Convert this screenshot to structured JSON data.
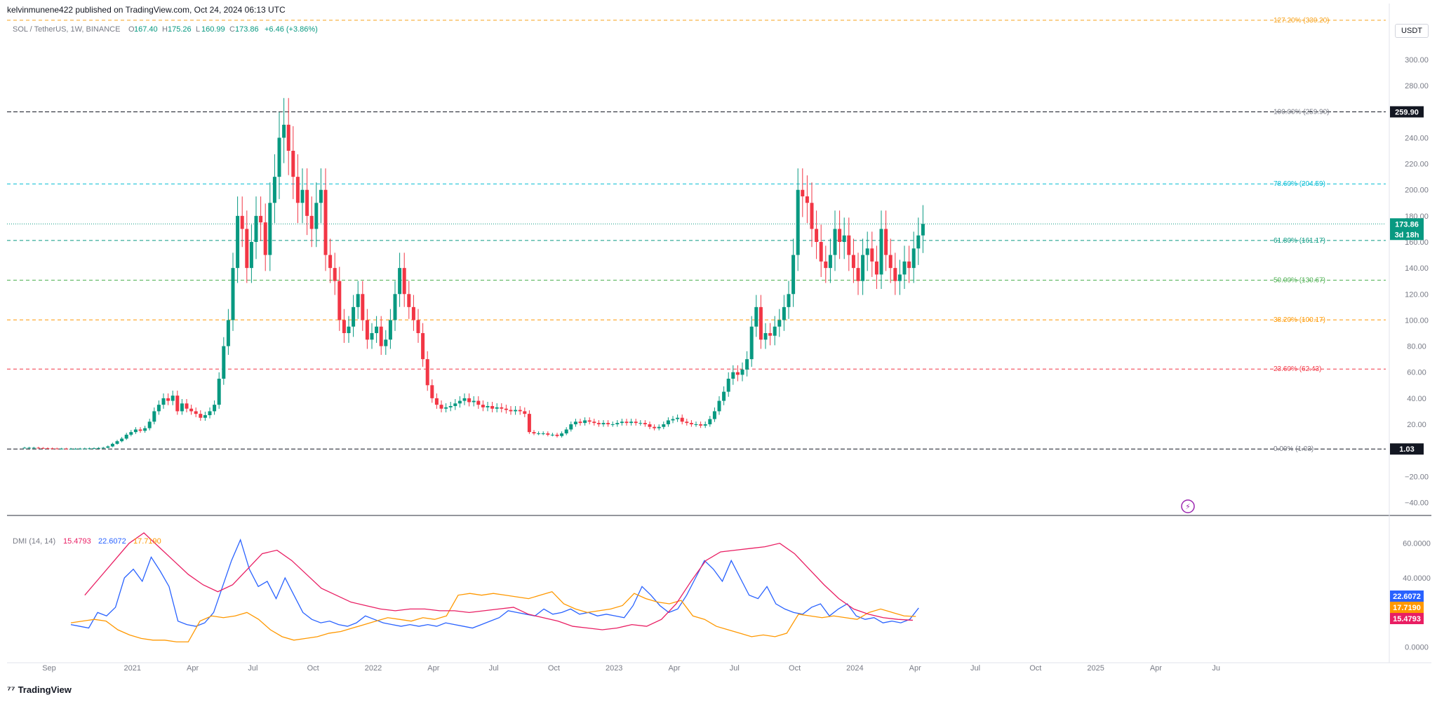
{
  "header": {
    "published": "kelvinmunene422 published on TradingView.com, Oct 24, 2024 06:13 UTC",
    "symbol": "SOL / TetherUS, 1W, BINANCE",
    "o_label": "O",
    "o": "167.40",
    "h_label": "H",
    "h": "175.26",
    "l_label": "L",
    "l": "160.99",
    "c_label": "C",
    "c": "173.86",
    "change": "+6.46 (+3.86%)"
  },
  "currency_badge": "USDT",
  "footer": {
    "brand": "TradingView"
  },
  "colors": {
    "up": "#089981",
    "down": "#f23645",
    "adx": "#2962ff",
    "di_plus": "#ff9800",
    "di_minus": "#e91e63"
  },
  "chart_data": [
    {
      "type": "candlestick",
      "ylim": [
        -50,
        335
      ],
      "y_ticks": [
        "300.00",
        "280.00",
        "240.00",
        "220.00",
        "200.00",
        "180.00",
        "160.00",
        "140.00",
        "120.00",
        "100.00",
        "80.00",
        "60.00",
        "40.00",
        "20.00",
        "−20.00",
        "−40.00"
      ],
      "y_tick_values": [
        300,
        280,
        240,
        220,
        200,
        180,
        160,
        140,
        120,
        100,
        80,
        60,
        40,
        20,
        -20,
        -40
      ],
      "x_ticks": [
        "Sep",
        "2021",
        "Apr",
        "Jul",
        "Oct",
        "2022",
        "Apr",
        "Jul",
        "Oct",
        "2023",
        "Apr",
        "Jul",
        "Oct",
        "2024",
        "Apr",
        "Jul",
        "Oct",
        "2025",
        "Apr",
        "Ju"
      ],
      "x_tick_weeks": [
        0,
        18,
        31,
        44,
        57,
        70,
        83,
        96,
        109,
        122,
        135,
        148,
        161,
        174,
        187,
        200,
        213,
        226,
        239,
        252
      ],
      "price_labels": [
        {
          "text": "259.90",
          "value": 259.9,
          "style": "black"
        },
        {
          "text": "173.86",
          "value": 173.86,
          "style": "green"
        },
        {
          "text": "3d 18h",
          "value": 173.86,
          "style": "green-sub"
        },
        {
          "text": "1.03",
          "value": 1.03,
          "style": "black"
        }
      ],
      "fib_levels": [
        {
          "label": "127.20% (330.20)",
          "value": 330.2,
          "color": "#f7a21b"
        },
        {
          "label": "100.00% (259.90)",
          "value": 259.9,
          "color": "#787b86"
        },
        {
          "label": "78.60% (204.59)",
          "value": 204.59,
          "color": "#00bcd4"
        },
        {
          "label": "61.80% (161.17)",
          "value": 161.17,
          "color": "#089981"
        },
        {
          "label": "50.00% (130.67)",
          "value": 130.67,
          "color": "#4caf50"
        },
        {
          "label": "38.20% (100.17)",
          "value": 100.17,
          "color": "#ff9800"
        },
        {
          "label": "23.60% (62.43)",
          "value": 62.43,
          "color": "#f23645"
        },
        {
          "label": "0.00% (1.03)",
          "value": 1.03,
          "color": "#787b86"
        }
      ],
      "close_series": [
        2,
        2,
        2,
        1.8,
        1.6,
        1.5,
        1.4,
        1.3,
        1.3,
        1.2,
        1.2,
        1.2,
        1.3,
        1.4,
        1.5,
        1.6,
        1.8,
        2.0,
        3,
        5,
        7,
        9,
        12,
        14,
        16,
        15,
        17,
        22,
        30,
        35,
        40,
        38,
        42,
        30,
        36,
        32,
        30,
        28,
        25,
        27,
        30,
        35,
        55,
        80,
        100,
        140,
        180,
        170,
        140,
        160,
        180,
        175,
        150,
        190,
        210,
        240,
        250,
        230,
        210,
        190,
        200,
        180,
        170,
        190,
        200,
        150,
        140,
        130,
        100,
        90,
        95,
        110,
        120,
        100,
        85,
        90,
        95,
        80,
        85,
        100,
        120,
        140,
        120,
        110,
        100,
        90,
        70,
        50,
        40,
        35,
        32,
        33,
        34,
        36,
        38,
        40,
        37,
        38,
        35,
        33,
        34,
        32,
        33,
        32,
        31,
        30,
        31,
        30,
        28,
        14,
        13,
        13,
        13,
        12,
        12,
        11,
        13,
        16,
        20,
        22,
        21,
        23,
        22,
        21,
        20,
        21,
        20,
        20,
        21,
        22,
        21,
        22,
        21,
        21,
        20,
        18,
        17,
        18,
        20,
        23,
        24,
        25,
        22,
        21,
        20,
        20,
        19,
        20,
        24,
        30,
        38,
        45,
        55,
        60,
        58,
        62,
        70,
        95,
        110,
        85,
        90,
        88,
        95,
        100,
        110,
        120,
        150,
        200,
        195,
        190,
        170,
        160,
        145,
        140,
        150,
        170,
        160,
        165,
        150,
        140,
        130,
        150,
        155,
        145,
        135,
        170,
        150,
        140,
        130,
        135,
        145,
        140,
        155,
        165,
        173.86
      ],
      "open_series": [
        2,
        2,
        2,
        2,
        1.8,
        1.6,
        1.5,
        1.4,
        1.3,
        1.3,
        1.2,
        1.2,
        1.2,
        1.3,
        1.4,
        1.5,
        1.6,
        1.8,
        2.0,
        3,
        5,
        7,
        9,
        12,
        14,
        16,
        15,
        17,
        22,
        30,
        35,
        40,
        38,
        42,
        30,
        36,
        32,
        30,
        28,
        25,
        27,
        30,
        35,
        55,
        80,
        100,
        140,
        180,
        170,
        140,
        160,
        180,
        175,
        150,
        190,
        210,
        240,
        250,
        230,
        210,
        190,
        200,
        180,
        170,
        190,
        200,
        150,
        140,
        130,
        100,
        90,
        95,
        110,
        120,
        100,
        85,
        90,
        95,
        80,
        85,
        100,
        120,
        140,
        120,
        110,
        100,
        90,
        70,
        50,
        40,
        35,
        32,
        33,
        34,
        36,
        38,
        40,
        37,
        38,
        35,
        33,
        34,
        32,
        33,
        32,
        31,
        30,
        31,
        30,
        28,
        14,
        13,
        13,
        13,
        12,
        12,
        11,
        13,
        16,
        20,
        22,
        21,
        23,
        22,
        21,
        20,
        21,
        20,
        20,
        21,
        22,
        21,
        22,
        21,
        21,
        20,
        18,
        17,
        18,
        20,
        23,
        24,
        25,
        22,
        21,
        20,
        20,
        19,
        20,
        24,
        30,
        38,
        45,
        55,
        60,
        58,
        62,
        70,
        95,
        110,
        85,
        90,
        88,
        95,
        100,
        110,
        120,
        150,
        200,
        195,
        190,
        170,
        160,
        145,
        140,
        150,
        170,
        160,
        165,
        150,
        140,
        130,
        150,
        155,
        145,
        135,
        170,
        150,
        140,
        130,
        135,
        145,
        140,
        155,
        165,
        167.4
      ]
    },
    {
      "type": "line",
      "title": "DMI (14, 14)",
      "legend_values": [
        {
          "text": "15.4793",
          "color": "#e91e63"
        },
        {
          "text": "22.6072",
          "color": "#2962ff"
        },
        {
          "text": "17.7190",
          "color": "#ff9800"
        }
      ],
      "ylim": [
        -5,
        70
      ],
      "y_ticks": [
        "60.0000",
        "40.0000",
        "0.0000"
      ],
      "y_tick_values": [
        60,
        40,
        0
      ],
      "value_badges": [
        {
          "text": "22.6072",
          "value": 22.6072,
          "color": "#2962ff"
        },
        {
          "text": "17.7190",
          "value": 17.719,
          "color": "#ff9800"
        },
        {
          "text": "15.4793",
          "value": 15.4793,
          "color": "#e91e63"
        }
      ],
      "series": [
        {
          "color": "#2962ff",
          "start_week": 10,
          "values": [
            13,
            12,
            11,
            20,
            18,
            23,
            40,
            45,
            38,
            52,
            44,
            35,
            15,
            13,
            12,
            14,
            20,
            35,
            50,
            62,
            45,
            35,
            38,
            28,
            40,
            30,
            20,
            16,
            14,
            15,
            13,
            12,
            14,
            18,
            16,
            14,
            13,
            12,
            13,
            12,
            13,
            12,
            14,
            13,
            12,
            11,
            13,
            15,
            17,
            21,
            20,
            19,
            18,
            22,
            19,
            20,
            22,
            19,
            20,
            18,
            19,
            18,
            17,
            24,
            35,
            30,
            24,
            20,
            22,
            30,
            40,
            50,
            45,
            38,
            50,
            40,
            30,
            28,
            35,
            25,
            22,
            20,
            19,
            23,
            25,
            18,
            22,
            25,
            18,
            16,
            17,
            14,
            15,
            14,
            16,
            22.6
          ]
        },
        {
          "color": "#ff9800",
          "start_week": 10,
          "values": [
            14,
            15,
            16,
            15,
            10,
            7,
            5,
            4,
            4,
            3,
            3,
            15,
            18,
            17,
            18,
            20,
            16,
            10,
            6,
            4,
            5,
            6,
            8,
            9,
            11,
            13,
            15,
            17,
            16,
            15,
            17,
            16,
            18,
            30,
            31,
            30,
            31,
            30,
            29,
            28,
            30,
            32,
            25,
            22,
            20,
            21,
            22,
            24,
            31,
            28,
            26,
            25,
            27,
            18,
            16,
            12,
            10,
            8,
            6,
            7,
            6,
            8,
            19,
            18,
            17,
            18,
            17,
            16,
            20,
            22,
            20,
            18,
            17.7
          ]
        },
        {
          "color": "#e91e63",
          "start_week": 13,
          "values": [
            30,
            40,
            50,
            60,
            66,
            58,
            50,
            42,
            36,
            32,
            36,
            45,
            54,
            56,
            50,
            42,
            34,
            30,
            26,
            24,
            22,
            21,
            22,
            22,
            21,
            21,
            20,
            21,
            22,
            23,
            19,
            17,
            15,
            12,
            11,
            10,
            11,
            13,
            12,
            16,
            25,
            38,
            50,
            55,
            56,
            57,
            58,
            60,
            54,
            45,
            36,
            28,
            22,
            19,
            17,
            16,
            15.5
          ]
        }
      ]
    }
  ]
}
